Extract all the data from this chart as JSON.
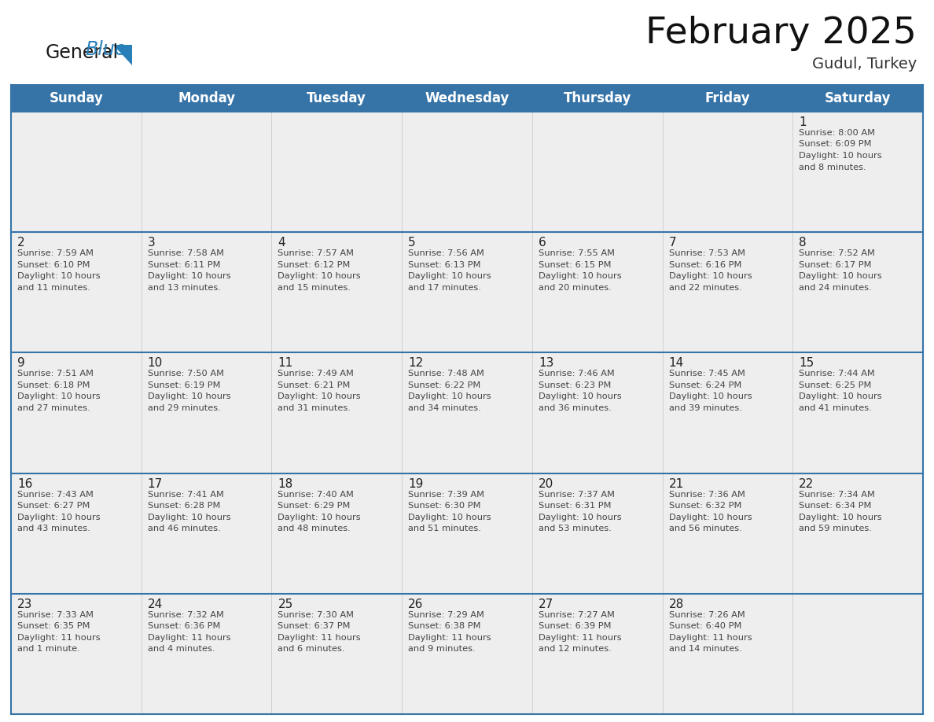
{
  "title": "February 2025",
  "subtitle": "Gudul, Turkey",
  "header_bg": "#3674A8",
  "header_text_color": "#FFFFFF",
  "day_names": [
    "Sunday",
    "Monday",
    "Tuesday",
    "Wednesday",
    "Thursday",
    "Friday",
    "Saturday"
  ],
  "title_fontsize": 34,
  "subtitle_fontsize": 14,
  "header_fontsize": 12,
  "cell_day_fontsize": 11,
  "cell_text_fontsize": 8.2,
  "grid_line_color": "#3674A8",
  "cell_bg": "#EEEEEE",
  "logo_general_color": "#1A1A1A",
  "logo_blue_color": "#2980B9",
  "logo_triangle_color": "#2980B9",
  "calendar_data": [
    {
      "day": 1,
      "col": 6,
      "row": 0,
      "sunrise": "8:00 AM",
      "sunset": "6:09 PM",
      "daylight_hours": 10,
      "daylight_minutes": 8
    },
    {
      "day": 2,
      "col": 0,
      "row": 1,
      "sunrise": "7:59 AM",
      "sunset": "6:10 PM",
      "daylight_hours": 10,
      "daylight_minutes": 11
    },
    {
      "day": 3,
      "col": 1,
      "row": 1,
      "sunrise": "7:58 AM",
      "sunset": "6:11 PM",
      "daylight_hours": 10,
      "daylight_minutes": 13
    },
    {
      "day": 4,
      "col": 2,
      "row": 1,
      "sunrise": "7:57 AM",
      "sunset": "6:12 PM",
      "daylight_hours": 10,
      "daylight_minutes": 15
    },
    {
      "day": 5,
      "col": 3,
      "row": 1,
      "sunrise": "7:56 AM",
      "sunset": "6:13 PM",
      "daylight_hours": 10,
      "daylight_minutes": 17
    },
    {
      "day": 6,
      "col": 4,
      "row": 1,
      "sunrise": "7:55 AM",
      "sunset": "6:15 PM",
      "daylight_hours": 10,
      "daylight_minutes": 20
    },
    {
      "day": 7,
      "col": 5,
      "row": 1,
      "sunrise": "7:53 AM",
      "sunset": "6:16 PM",
      "daylight_hours": 10,
      "daylight_minutes": 22
    },
    {
      "day": 8,
      "col": 6,
      "row": 1,
      "sunrise": "7:52 AM",
      "sunset": "6:17 PM",
      "daylight_hours": 10,
      "daylight_minutes": 24
    },
    {
      "day": 9,
      "col": 0,
      "row": 2,
      "sunrise": "7:51 AM",
      "sunset": "6:18 PM",
      "daylight_hours": 10,
      "daylight_minutes": 27
    },
    {
      "day": 10,
      "col": 1,
      "row": 2,
      "sunrise": "7:50 AM",
      "sunset": "6:19 PM",
      "daylight_hours": 10,
      "daylight_minutes": 29
    },
    {
      "day": 11,
      "col": 2,
      "row": 2,
      "sunrise": "7:49 AM",
      "sunset": "6:21 PM",
      "daylight_hours": 10,
      "daylight_minutes": 31
    },
    {
      "day": 12,
      "col": 3,
      "row": 2,
      "sunrise": "7:48 AM",
      "sunset": "6:22 PM",
      "daylight_hours": 10,
      "daylight_minutes": 34
    },
    {
      "day": 13,
      "col": 4,
      "row": 2,
      "sunrise": "7:46 AM",
      "sunset": "6:23 PM",
      "daylight_hours": 10,
      "daylight_minutes": 36
    },
    {
      "day": 14,
      "col": 5,
      "row": 2,
      "sunrise": "7:45 AM",
      "sunset": "6:24 PM",
      "daylight_hours": 10,
      "daylight_minutes": 39
    },
    {
      "day": 15,
      "col": 6,
      "row": 2,
      "sunrise": "7:44 AM",
      "sunset": "6:25 PM",
      "daylight_hours": 10,
      "daylight_minutes": 41
    },
    {
      "day": 16,
      "col": 0,
      "row": 3,
      "sunrise": "7:43 AM",
      "sunset": "6:27 PM",
      "daylight_hours": 10,
      "daylight_minutes": 43
    },
    {
      "day": 17,
      "col": 1,
      "row": 3,
      "sunrise": "7:41 AM",
      "sunset": "6:28 PM",
      "daylight_hours": 10,
      "daylight_minutes": 46
    },
    {
      "day": 18,
      "col": 2,
      "row": 3,
      "sunrise": "7:40 AM",
      "sunset": "6:29 PM",
      "daylight_hours": 10,
      "daylight_minutes": 48
    },
    {
      "day": 19,
      "col": 3,
      "row": 3,
      "sunrise": "7:39 AM",
      "sunset": "6:30 PM",
      "daylight_hours": 10,
      "daylight_minutes": 51
    },
    {
      "day": 20,
      "col": 4,
      "row": 3,
      "sunrise": "7:37 AM",
      "sunset": "6:31 PM",
      "daylight_hours": 10,
      "daylight_minutes": 53
    },
    {
      "day": 21,
      "col": 5,
      "row": 3,
      "sunrise": "7:36 AM",
      "sunset": "6:32 PM",
      "daylight_hours": 10,
      "daylight_minutes": 56
    },
    {
      "day": 22,
      "col": 6,
      "row": 3,
      "sunrise": "7:34 AM",
      "sunset": "6:34 PM",
      "daylight_hours": 10,
      "daylight_minutes": 59
    },
    {
      "day": 23,
      "col": 0,
      "row": 4,
      "sunrise": "7:33 AM",
      "sunset": "6:35 PM",
      "daylight_hours": 11,
      "daylight_minutes": 1
    },
    {
      "day": 24,
      "col": 1,
      "row": 4,
      "sunrise": "7:32 AM",
      "sunset": "6:36 PM",
      "daylight_hours": 11,
      "daylight_minutes": 4
    },
    {
      "day": 25,
      "col": 2,
      "row": 4,
      "sunrise": "7:30 AM",
      "sunset": "6:37 PM",
      "daylight_hours": 11,
      "daylight_minutes": 6
    },
    {
      "day": 26,
      "col": 3,
      "row": 4,
      "sunrise": "7:29 AM",
      "sunset": "6:38 PM",
      "daylight_hours": 11,
      "daylight_minutes": 9
    },
    {
      "day": 27,
      "col": 4,
      "row": 4,
      "sunrise": "7:27 AM",
      "sunset": "6:39 PM",
      "daylight_hours": 11,
      "daylight_minutes": 12
    },
    {
      "day": 28,
      "col": 5,
      "row": 4,
      "sunrise": "7:26 AM",
      "sunset": "6:40 PM",
      "daylight_hours": 11,
      "daylight_minutes": 14
    }
  ]
}
